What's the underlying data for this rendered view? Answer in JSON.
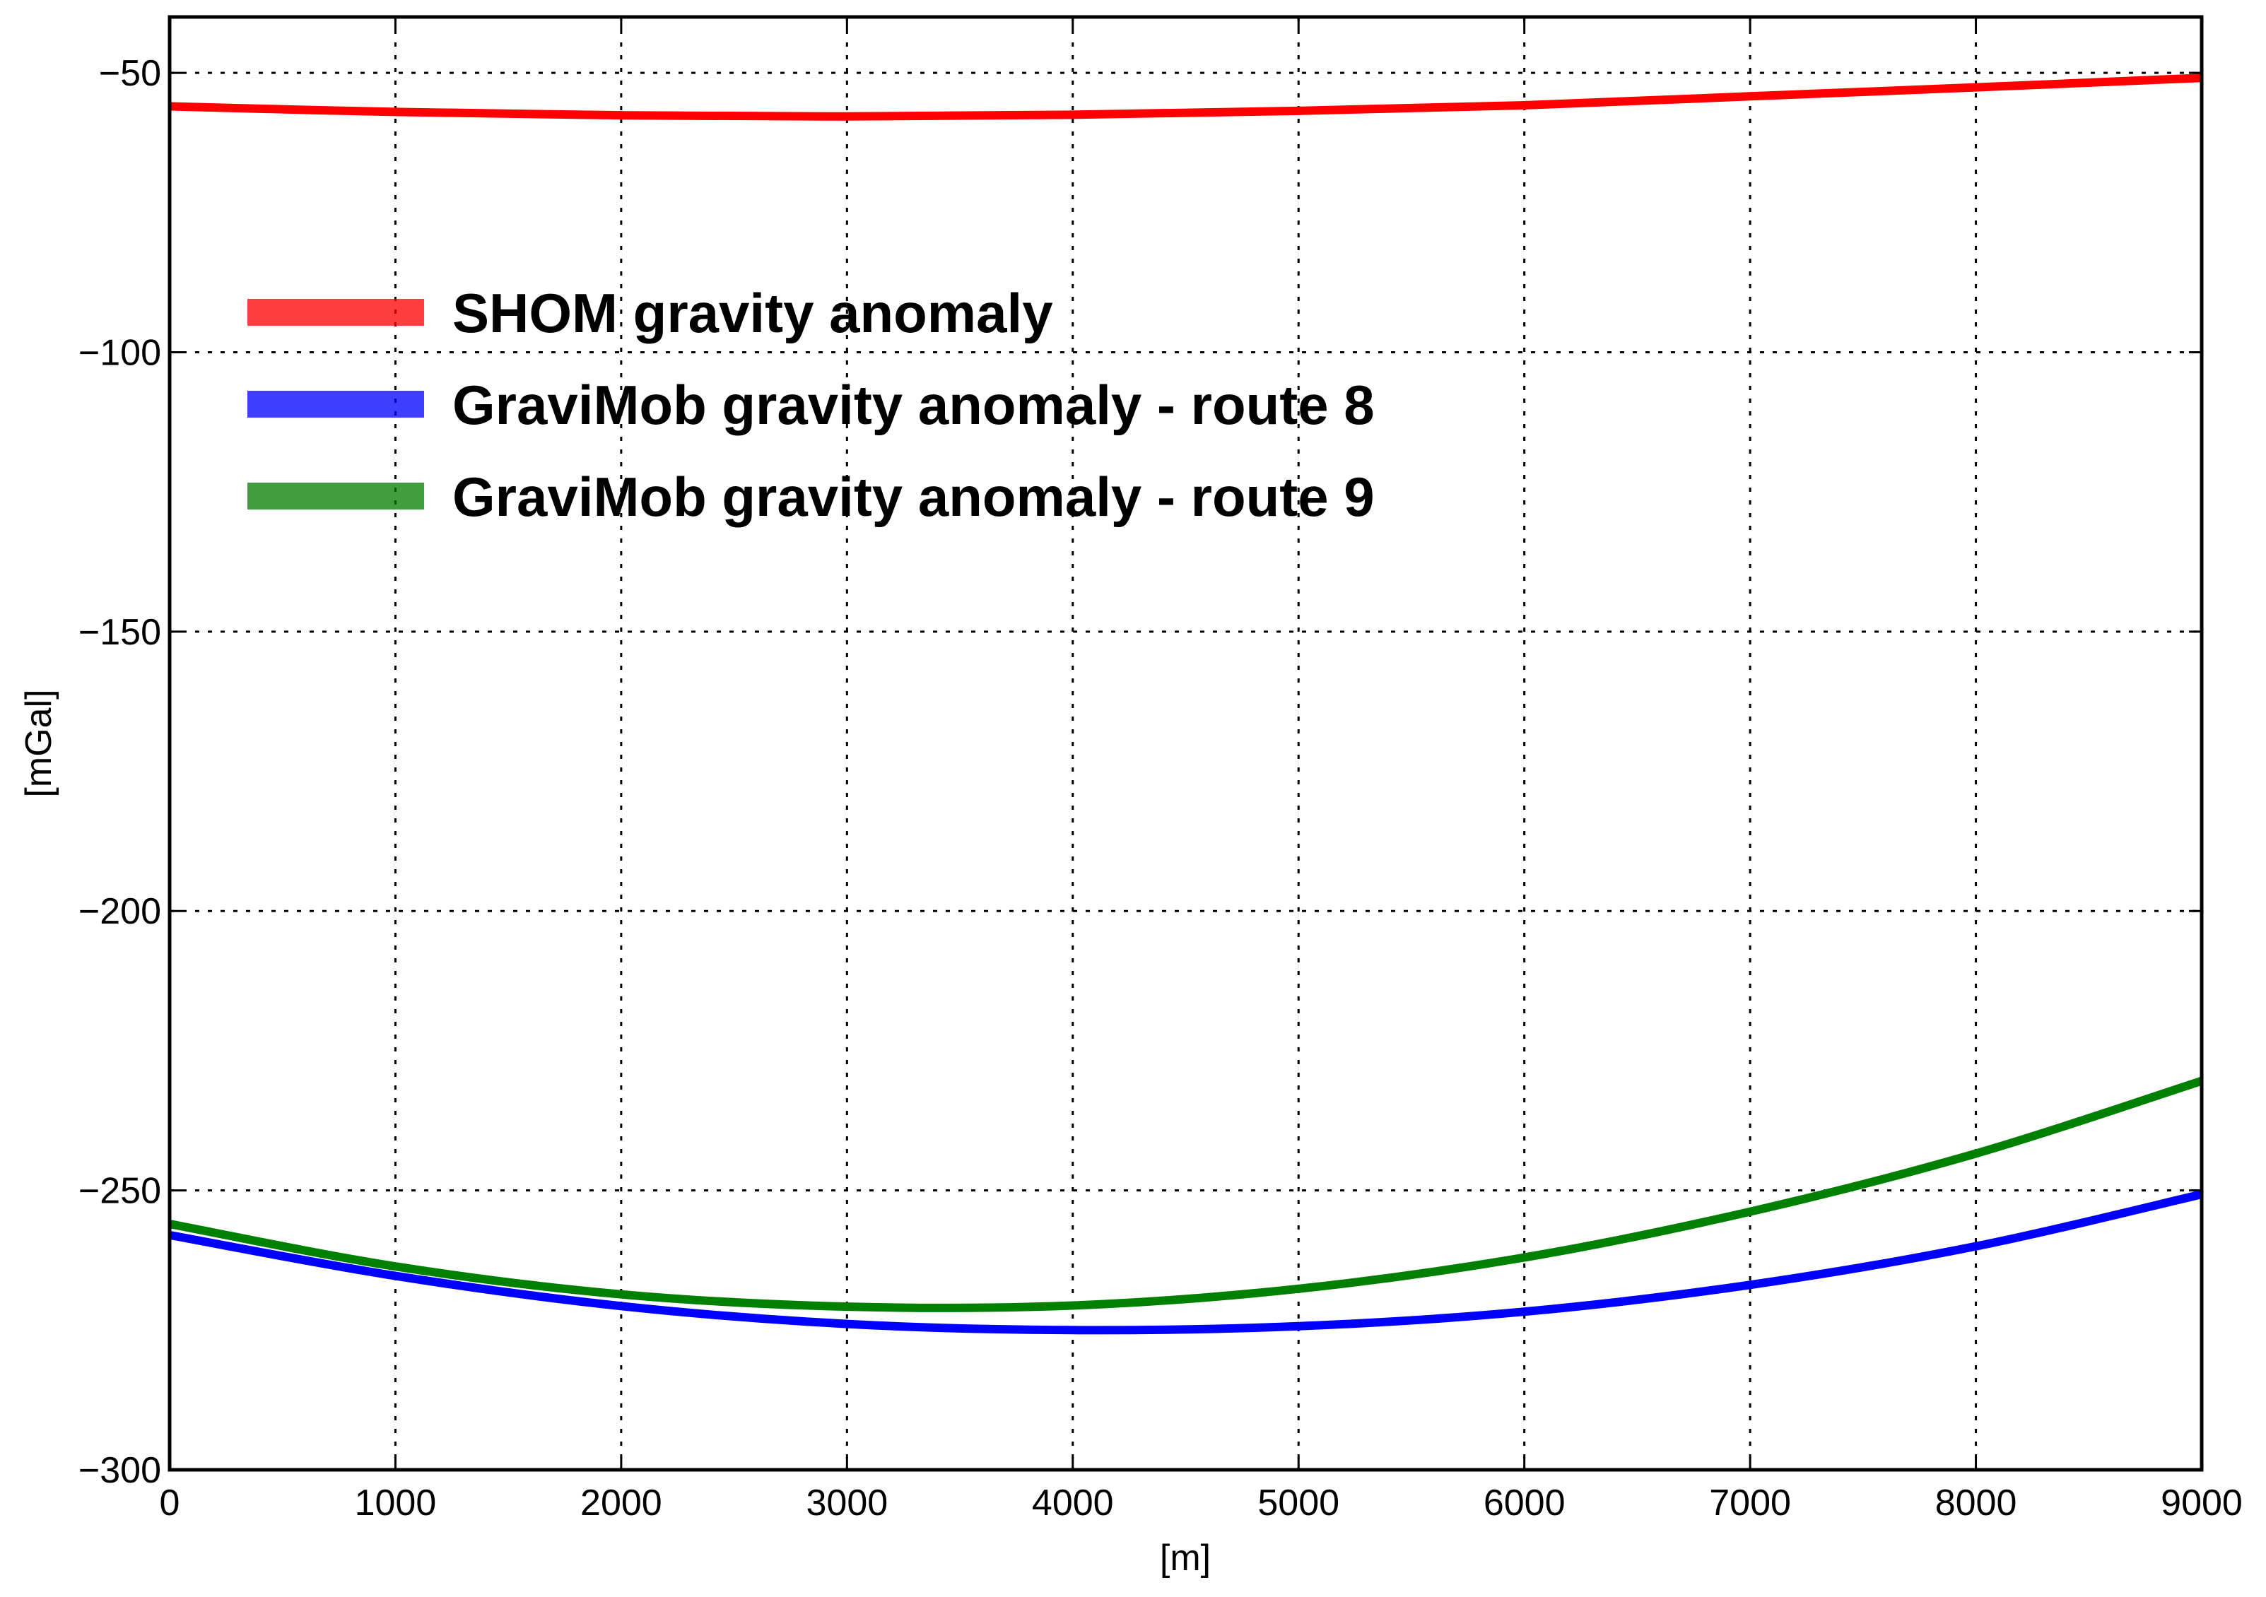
{
  "chart_data": {
    "type": "line",
    "title": "",
    "xlabel": "[m]",
    "ylabel": "[mGal]",
    "xlim": [
      0,
      9000
    ],
    "ylim": [
      -300,
      -40
    ],
    "xticks": [
      0,
      1000,
      2000,
      3000,
      4000,
      5000,
      6000,
      7000,
      8000,
      9000
    ],
    "yticks": [
      -300,
      -250,
      -200,
      -150,
      -100,
      -50
    ],
    "grid": true,
    "legend_position": "upper-left",
    "series": [
      {
        "name": "SHOM gravity anomaly",
        "color": "#ff0000",
        "x": [
          0,
          1000,
          2000,
          3000,
          4000,
          5000,
          6000,
          7000,
          8000,
          9000
        ],
        "y": [
          -56,
          -57,
          -57.6,
          -57.8,
          -57.5,
          -56.8,
          -55.8,
          -54.2,
          -52.6,
          -50.9
        ]
      },
      {
        "name": "GraviMob gravity anomaly - route 8",
        "color": "#0000ff",
        "x": [
          0,
          1000,
          2000,
          3000,
          4000,
          5000,
          6000,
          7000,
          8000,
          9000
        ],
        "y": [
          -258,
          -265.3,
          -270.7,
          -273.9,
          -275,
          -274.3,
          -271.7,
          -266.9,
          -260,
          -250.7
        ]
      },
      {
        "name": "GraviMob gravity anomaly - route 9",
        "color": "#008000",
        "x": [
          0,
          1000,
          2000,
          3000,
          4000,
          5000,
          6000,
          7000,
          8000,
          9000
        ],
        "y": [
          -256,
          -263.6,
          -268.6,
          -270.8,
          -270.6,
          -267.6,
          -262,
          -253.8,
          -243.4,
          -230.4
        ]
      }
    ]
  }
}
